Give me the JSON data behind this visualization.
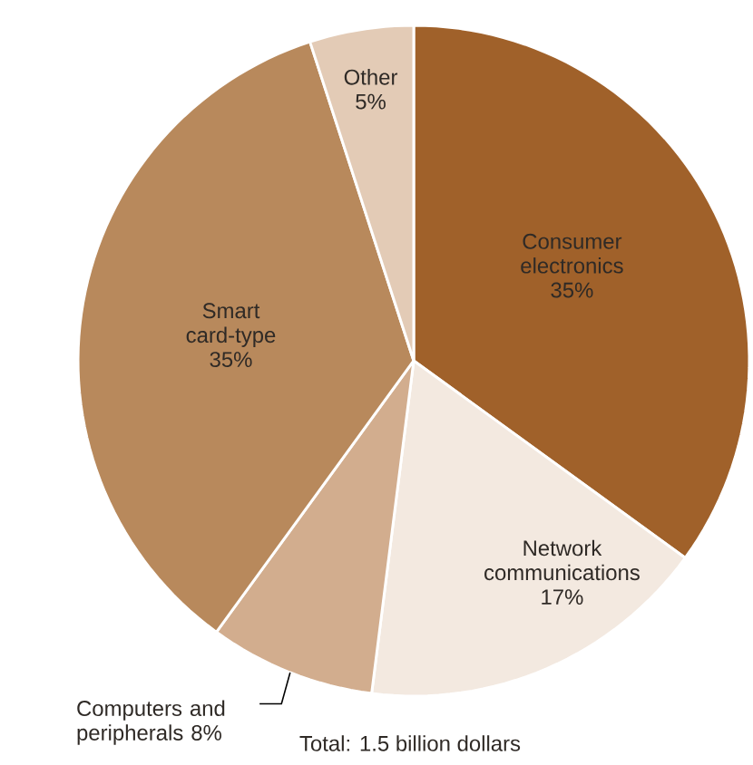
{
  "chart_data": {
    "type": "pie",
    "categories": [
      "Consumer electronics",
      "Network communications",
      "Computers and peripherals",
      "Smart card-type",
      "Other"
    ],
    "values": [
      35,
      17,
      8,
      35,
      5
    ],
    "colors": [
      "#a0612a",
      "#f3e9e0",
      "#d2ad8e",
      "#b8895c",
      "#e3cbb6"
    ],
    "value_labels": [
      "35%",
      "17%",
      "8%",
      "35%",
      "5%"
    ],
    "annotations": [
      "Total: 1.5 billion dollars"
    ]
  }
}
